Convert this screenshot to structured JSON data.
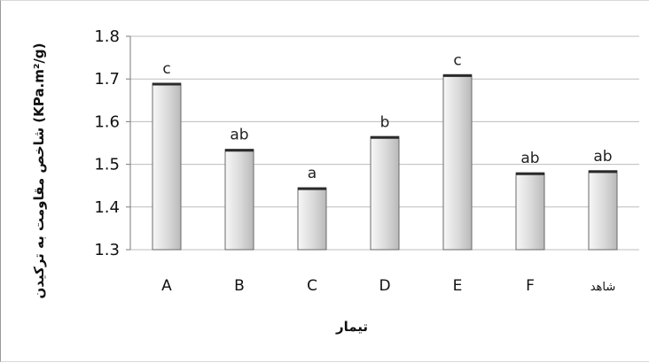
{
  "chart_data": {
    "type": "bar",
    "categories": [
      "A",
      "B",
      "C",
      "D",
      "E",
      "F",
      "شاهد"
    ],
    "values": [
      1.69,
      1.535,
      1.445,
      1.565,
      1.71,
      1.48,
      1.485
    ],
    "data_labels": [
      "c",
      "ab",
      "a",
      "b",
      "c",
      "ab",
      "ab"
    ],
    "xlabel": "تیمار",
    "ylabel": "شاخص مقاومت به ترکیدن (KPa.m²/g)",
    "ylim": [
      1.3,
      1.8
    ],
    "yticks": [
      "1.3",
      "1.4",
      "1.5",
      "1.6",
      "1.7",
      "1.8"
    ],
    "grid": true,
    "legend": "none",
    "colors": {
      "bar_fill_light": "#f7f7f7",
      "bar_fill_dark": "#b9b9b9",
      "bar_stroke": "#2a2a2a",
      "grid": "#bdbdbd"
    }
  }
}
